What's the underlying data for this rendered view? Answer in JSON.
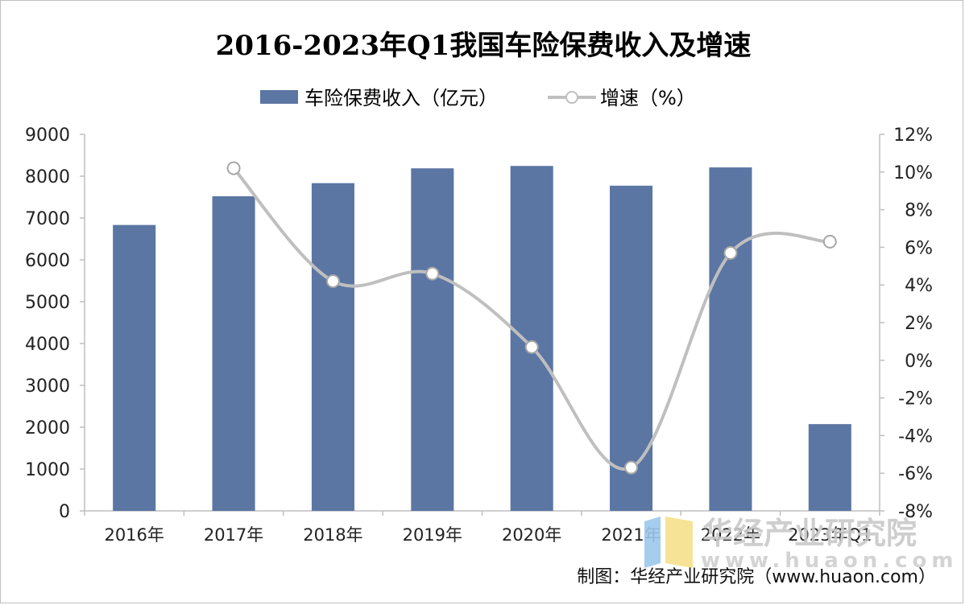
{
  "chart_data": {
    "type": "bar",
    "title": "2016-2023年Q1我国车险保费收入及增速",
    "categories": [
      "2016年",
      "2017年",
      "2018年",
      "2019年",
      "2020年",
      "2021年",
      "2022年",
      "2023年Q1"
    ],
    "series": [
      {
        "name": "车险保费收入（亿元）",
        "type": "bar",
        "axis": "left",
        "color": "#5b76a3",
        "values": [
          6834,
          7521,
          7834,
          8188,
          8245,
          7773,
          8210,
          2074
        ]
      },
      {
        "name": "增速（%）",
        "type": "line",
        "axis": "right",
        "color": "#bfbfbf",
        "values": [
          null,
          10.2,
          4.2,
          4.6,
          0.7,
          -5.7,
          5.7,
          6.3
        ]
      }
    ],
    "left_axis": {
      "min": 0,
      "max": 9000,
      "step": 1000,
      "ticks": [
        "0",
        "1000",
        "2000",
        "3000",
        "4000",
        "5000",
        "6000",
        "7000",
        "8000",
        "9000"
      ]
    },
    "right_axis": {
      "min": -8,
      "max": 12,
      "step": 2,
      "ticks": [
        "-8%",
        "-6%",
        "-4%",
        "-2%",
        "0%",
        "2%",
        "4%",
        "6%",
        "8%",
        "10%",
        "12%"
      ]
    },
    "legend_position": "top-center",
    "grid": false
  },
  "watermark": {
    "text": "华经产业研究院",
    "url": "www.huaon.com"
  },
  "credit": "制图：华经产业研究院（www.huaon.com）"
}
